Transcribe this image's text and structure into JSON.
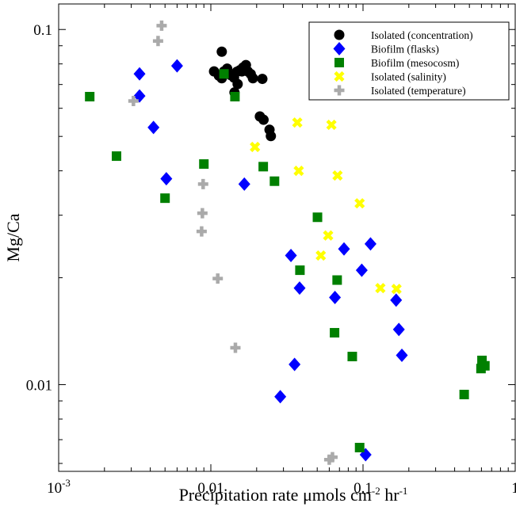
{
  "chart_data": {
    "type": "scatter",
    "title": "",
    "xlabel": "Precipitation rate μmols cm",
    "xlabel_exp1": "-2",
    "xlabel_mid": " hr",
    "xlabel_exp2": "-1",
    "ylabel": "Mg/Ca",
    "xscale": "log",
    "yscale": "log",
    "xlim": [
      0.001,
      1
    ],
    "ylim": [
      0.0057,
      0.118
    ],
    "x_ticks": [
      {
        "value": 0.001,
        "base": "10",
        "exp": "-3"
      },
      {
        "value": 0.01,
        "label": "0.01"
      },
      {
        "value": 0.1,
        "label": "0.1"
      },
      {
        "value": 1,
        "label": "1"
      }
    ],
    "y_ticks": [
      {
        "value": 0.01,
        "label": "0.01"
      },
      {
        "value": 0.1,
        "label": "0.1"
      }
    ],
    "grid": false,
    "legend_position": "top-right",
    "series": [
      {
        "name": "Isolated (concentration)",
        "marker": "circle",
        "color": "#000000",
        "points": [
          [
            0.0118,
            0.0866
          ],
          [
            0.0105,
            0.0762
          ],
          [
            0.0113,
            0.0741
          ],
          [
            0.0118,
            0.0729
          ],
          [
            0.0122,
            0.0762
          ],
          [
            0.0128,
            0.0776
          ],
          [
            0.0135,
            0.0744
          ],
          [
            0.0142,
            0.0732
          ],
          [
            0.0148,
            0.076
          ],
          [
            0.0155,
            0.0768
          ],
          [
            0.0163,
            0.0782
          ],
          [
            0.017,
            0.0794
          ],
          [
            0.016,
            0.0762
          ],
          [
            0.0175,
            0.0762
          ],
          [
            0.0183,
            0.0749
          ],
          [
            0.0189,
            0.0729
          ],
          [
            0.015,
            0.0702
          ],
          [
            0.0143,
            0.0665
          ],
          [
            0.0218,
            0.0726
          ],
          [
            0.021,
            0.0569
          ],
          [
            0.0222,
            0.0557
          ],
          [
            0.0243,
            0.0522
          ],
          [
            0.0248,
            0.0501
          ]
        ]
      },
      {
        "name": "Biofilm (flasks)",
        "marker": "diamond",
        "color": "#0000ff",
        "points": [
          [
            0.0034,
            0.075
          ],
          [
            0.0034,
            0.065
          ],
          [
            0.0042,
            0.053
          ],
          [
            0.006,
            0.079
          ],
          [
            0.0051,
            0.038
          ],
          [
            0.0166,
            0.0367
          ],
          [
            0.0336,
            0.0231
          ],
          [
            0.0383,
            0.0187
          ],
          [
            0.0654,
            0.0176
          ],
          [
            0.075,
            0.0241
          ],
          [
            0.0981,
            0.021
          ],
          [
            0.112,
            0.0249
          ],
          [
            0.165,
            0.0173
          ],
          [
            0.172,
            0.0143
          ],
          [
            0.18,
            0.0121
          ],
          [
            0.0355,
            0.0114
          ],
          [
            0.0286,
            0.00925
          ],
          [
            0.104,
            0.00635
          ]
        ]
      },
      {
        "name": "Biofilm (mesocosm)",
        "marker": "square",
        "color": "#008000",
        "points": [
          [
            0.0016,
            0.0647
          ],
          [
            0.0024,
            0.044
          ],
          [
            0.005,
            0.0335
          ],
          [
            0.009,
            0.0418
          ],
          [
            0.0122,
            0.075
          ],
          [
            0.0144,
            0.0647
          ],
          [
            0.0221,
            0.0411
          ],
          [
            0.0262,
            0.0374
          ],
          [
            0.0385,
            0.021
          ],
          [
            0.0502,
            0.0296
          ],
          [
            0.0676,
            0.0197
          ],
          [
            0.065,
            0.014
          ],
          [
            0.085,
            0.012
          ],
          [
            0.095,
            0.00665
          ],
          [
            0.605,
            0.0117
          ],
          [
            0.632,
            0.0113
          ],
          [
            0.596,
            0.0111
          ],
          [
            0.462,
            0.00938
          ]
        ]
      },
      {
        "name": "Isolated (salinity)",
        "marker": "x",
        "color": "#ffff00",
        "points": [
          [
            0.0195,
            0.0467
          ],
          [
            0.037,
            0.0547
          ],
          [
            0.062,
            0.0539
          ],
          [
            0.0378,
            0.04
          ],
          [
            0.068,
            0.0388
          ],
          [
            0.095,
            0.0324
          ],
          [
            0.059,
            0.0263
          ],
          [
            0.0528,
            0.0231
          ],
          [
            0.13,
            0.0187
          ],
          [
            0.166,
            0.0186
          ]
        ]
      },
      {
        "name": "Isolated (temperature)",
        "marker": "plus",
        "color": "#aaaaaa",
        "points": [
          [
            0.00475,
            0.1025
          ],
          [
            0.0045,
            0.0928
          ],
          [
            0.0031,
            0.0629
          ],
          [
            0.0089,
            0.0367
          ],
          [
            0.0088,
            0.0304
          ],
          [
            0.0087,
            0.027
          ],
          [
            0.0111,
            0.0199
          ],
          [
            0.0145,
            0.0127
          ],
          [
            0.06,
            0.00615
          ],
          [
            0.063,
            0.00625
          ]
        ]
      }
    ]
  }
}
